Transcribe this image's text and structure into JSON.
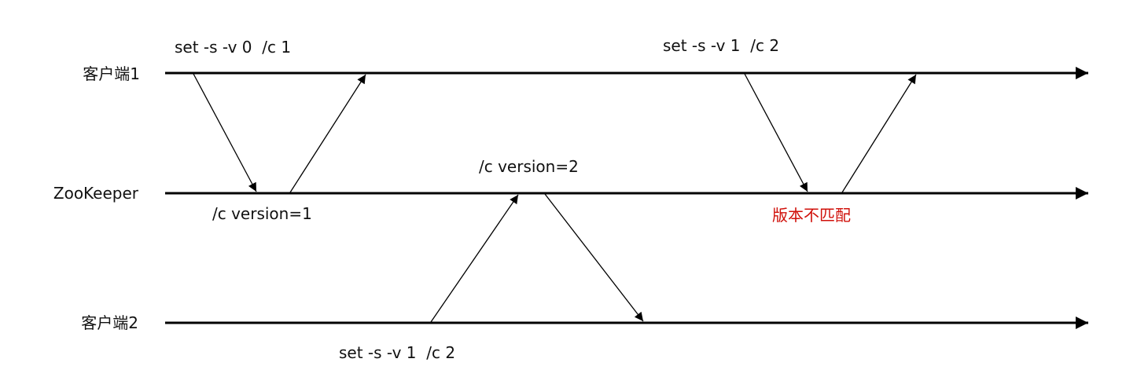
{
  "lanes": [
    {
      "label": "客户端1"
    },
    {
      "label": "ZooKeeper"
    },
    {
      "label": "客户端2"
    }
  ],
  "labels": {
    "c1_set_first": "set -s -v 0  /c 1",
    "c1_set_second": "set -s -v 1  /c 2",
    "zk_version_1": "/c version=1",
    "zk_version_2": "/c version=2",
    "zk_mismatch": "版本不匹配",
    "c2_set": "set -s -v 1  /c 2"
  },
  "colors": {
    "line": "#000000",
    "text": "#111111",
    "mismatch": "#d0100a"
  }
}
